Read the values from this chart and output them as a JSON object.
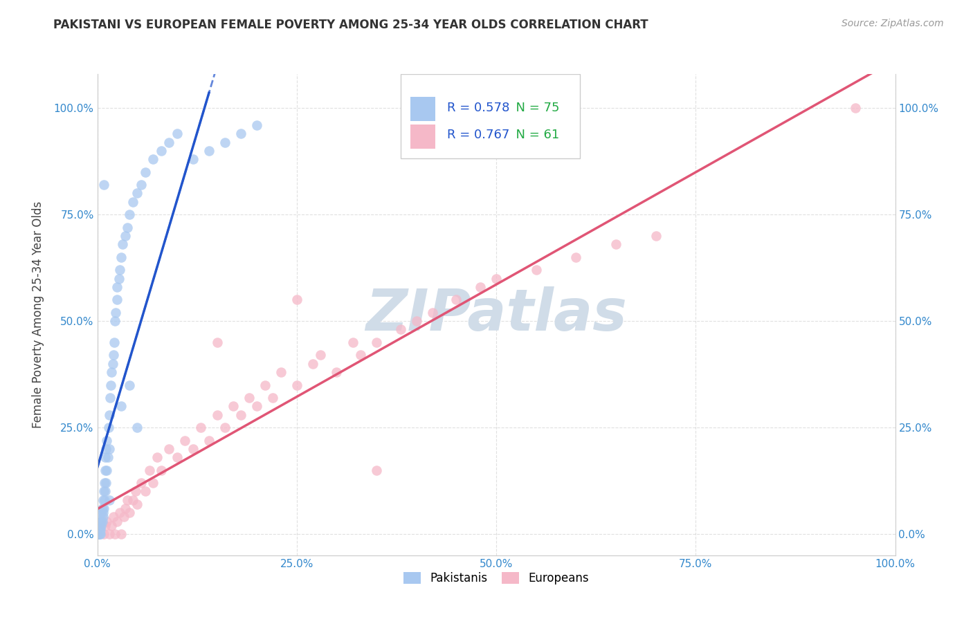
{
  "title": "PAKISTANI VS EUROPEAN FEMALE POVERTY AMONG 25-34 YEAR OLDS CORRELATION CHART",
  "source": "Source: ZipAtlas.com",
  "ylabel": "Female Poverty Among 25-34 Year Olds",
  "pakistani_R": 0.578,
  "pakistani_N": 75,
  "european_R": 0.767,
  "european_N": 61,
  "pakistani_color": "#a8c8f0",
  "european_color": "#f5b8c8",
  "pakistani_line_color": "#2255cc",
  "european_line_color": "#e05575",
  "legend_r_color": "#2255cc",
  "legend_n_color": "#22aa44",
  "background_color": "#ffffff",
  "watermark_text": "ZIPatlas",
  "watermark_color": "#d0dce8",
  "title_color": "#333333",
  "axis_label_color": "#444444",
  "tick_label_color": "#3388cc",
  "grid_color": "#dddddd",
  "pakistani_x": [
    0.0,
    0.0,
    0.0,
    0.0,
    0.0,
    0.001,
    0.001,
    0.001,
    0.002,
    0.002,
    0.002,
    0.003,
    0.003,
    0.003,
    0.004,
    0.004,
    0.004,
    0.005,
    0.005,
    0.005,
    0.006,
    0.006,
    0.007,
    0.007,
    0.007,
    0.008,
    0.008,
    0.009,
    0.009,
    0.01,
    0.01,
    0.01,
    0.011,
    0.011,
    0.012,
    0.012,
    0.013,
    0.014,
    0.015,
    0.015,
    0.016,
    0.017,
    0.018,
    0.019,
    0.02,
    0.021,
    0.022,
    0.023,
    0.025,
    0.025,
    0.027,
    0.028,
    0.03,
    0.032,
    0.035,
    0.038,
    0.04,
    0.045,
    0.05,
    0.055,
    0.06,
    0.07,
    0.08,
    0.09,
    0.1,
    0.12,
    0.14,
    0.16,
    0.18,
    0.2,
    0.03,
    0.04,
    0.05,
    0.015,
    0.008
  ],
  "pakistani_y": [
    0.0,
    0.0,
    0.0,
    0.01,
    0.0,
    0.0,
    0.0,
    0.01,
    0.0,
    0.01,
    0.02,
    0.0,
    0.01,
    0.02,
    0.0,
    0.01,
    0.03,
    0.02,
    0.03,
    0.05,
    0.03,
    0.06,
    0.04,
    0.05,
    0.08,
    0.06,
    0.1,
    0.08,
    0.12,
    0.1,
    0.15,
    0.18,
    0.12,
    0.2,
    0.15,
    0.22,
    0.18,
    0.25,
    0.2,
    0.28,
    0.32,
    0.35,
    0.38,
    0.4,
    0.42,
    0.45,
    0.5,
    0.52,
    0.55,
    0.58,
    0.6,
    0.62,
    0.65,
    0.68,
    0.7,
    0.72,
    0.75,
    0.78,
    0.8,
    0.82,
    0.85,
    0.88,
    0.9,
    0.92,
    0.94,
    0.88,
    0.9,
    0.92,
    0.94,
    0.96,
    0.3,
    0.35,
    0.25,
    0.08,
    0.82
  ],
  "european_x": [
    0.0,
    0.005,
    0.008,
    0.01,
    0.012,
    0.015,
    0.018,
    0.02,
    0.022,
    0.025,
    0.028,
    0.03,
    0.033,
    0.035,
    0.038,
    0.04,
    0.045,
    0.048,
    0.05,
    0.055,
    0.06,
    0.065,
    0.07,
    0.075,
    0.08,
    0.09,
    0.1,
    0.11,
    0.12,
    0.13,
    0.14,
    0.15,
    0.16,
    0.17,
    0.18,
    0.19,
    0.2,
    0.21,
    0.22,
    0.23,
    0.25,
    0.27,
    0.28,
    0.3,
    0.32,
    0.33,
    0.35,
    0.38,
    0.4,
    0.42,
    0.45,
    0.48,
    0.5,
    0.55,
    0.6,
    0.65,
    0.7,
    0.35,
    0.25,
    0.15,
    0.95
  ],
  "european_y": [
    0.0,
    0.02,
    0.0,
    0.02,
    0.03,
    0.0,
    0.02,
    0.04,
    0.0,
    0.03,
    0.05,
    0.0,
    0.04,
    0.06,
    0.08,
    0.05,
    0.08,
    0.1,
    0.07,
    0.12,
    0.1,
    0.15,
    0.12,
    0.18,
    0.15,
    0.2,
    0.18,
    0.22,
    0.2,
    0.25,
    0.22,
    0.28,
    0.25,
    0.3,
    0.28,
    0.32,
    0.3,
    0.35,
    0.32,
    0.38,
    0.35,
    0.4,
    0.42,
    0.38,
    0.45,
    0.42,
    0.45,
    0.48,
    0.5,
    0.52,
    0.55,
    0.58,
    0.6,
    0.62,
    0.65,
    0.68,
    0.7,
    0.15,
    0.55,
    0.45,
    1.0
  ],
  "xlim": [
    0.0,
    1.0
  ],
  "ylim": [
    -0.05,
    1.08
  ],
  "xticks": [
    0.0,
    0.25,
    0.5,
    0.75,
    1.0
  ],
  "xtick_labels": [
    "0.0%",
    "25.0%",
    "50.0%",
    "75.0%",
    "100.0%"
  ],
  "ytick_labels_left": [
    "0.0%",
    "25.0%",
    "50.0%",
    "75.0%",
    "100.0%"
  ],
  "ytick_labels_right": [
    "0.0%",
    "25.0%",
    "50.0%",
    "75.0%",
    "100.0%"
  ],
  "yticks": [
    0.0,
    0.25,
    0.5,
    0.75,
    1.0
  ]
}
